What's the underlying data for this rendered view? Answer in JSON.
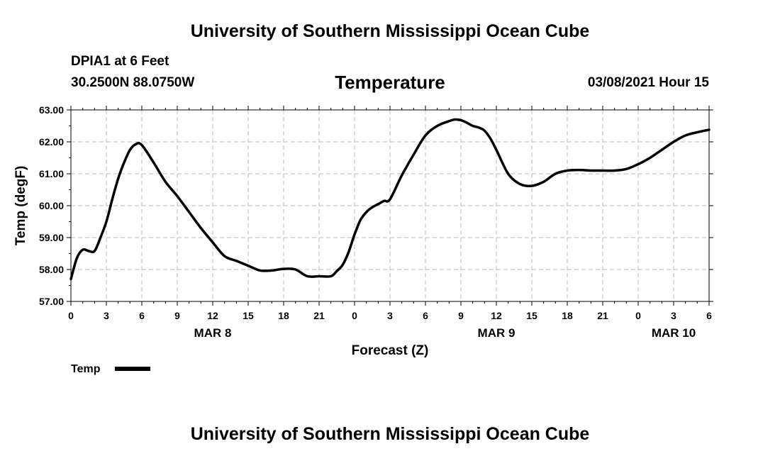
{
  "title_top": "University of Southern Mississippi Ocean Cube",
  "title_bottom": "University of Southern Mississippi Ocean Cube",
  "station": "DPIA1 at 6 Feet",
  "coords": "30.2500N 88.0750W",
  "subtitle": "Temperature",
  "timestamp": "03/08/2021 Hour 15",
  "legend_label": "Temp",
  "colors": {
    "line": "#000000",
    "grid": "#bbbbbb",
    "background": "#ffffff"
  },
  "chart_data": {
    "type": "line",
    "title": "Temperature",
    "xlabel": "Forecast (Z)",
    "ylabel": "Temp (degF)",
    "xlim": [
      0,
      54
    ],
    "ylim": [
      57,
      63
    ],
    "grid": true,
    "legend_position": "bottom-left",
    "x_tick_labels": [
      "0",
      "3",
      "6",
      "9",
      "12",
      "15",
      "18",
      "21",
      "0",
      "3",
      "6",
      "9",
      "12",
      "15",
      "18",
      "21",
      "0",
      "3",
      "6"
    ],
    "y_tick_labels": [
      "57.00",
      "58.00",
      "59.00",
      "60.00",
      "61.00",
      "62.00",
      "63.00"
    ],
    "date_labels": [
      {
        "label": "MAR 8",
        "x": 12
      },
      {
        "label": "MAR 9",
        "x": 36
      },
      {
        "label": "MAR 10",
        "x": 51
      }
    ],
    "series": [
      {
        "name": "Temp",
        "x": [
          0,
          0.5,
          1,
          1.5,
          2,
          2.5,
          3,
          3.5,
          4,
          4.5,
          5,
          5.5,
          6,
          7,
          8,
          9,
          10,
          11,
          12,
          13,
          14,
          15,
          16,
          17,
          18,
          19,
          20,
          21,
          22,
          22.5,
          23,
          23.5,
          24,
          24.5,
          25,
          25.5,
          26,
          26.5,
          27,
          28,
          29,
          30,
          31,
          32,
          32.5,
          33,
          33.5,
          34,
          34.5,
          35,
          35.5,
          36,
          37,
          38,
          39,
          40,
          41,
          42,
          43,
          44,
          45,
          46,
          47,
          48,
          49,
          50,
          51,
          52,
          53,
          54
        ],
        "y": [
          57.7,
          58.35,
          58.62,
          58.58,
          58.58,
          59.0,
          59.5,
          60.2,
          60.85,
          61.35,
          61.75,
          61.93,
          61.9,
          61.35,
          60.75,
          60.3,
          59.8,
          59.3,
          58.85,
          58.42,
          58.27,
          58.12,
          57.97,
          57.97,
          58.02,
          58.0,
          57.79,
          57.79,
          57.79,
          57.95,
          58.15,
          58.55,
          59.1,
          59.55,
          59.8,
          59.95,
          60.05,
          60.15,
          60.2,
          60.95,
          61.6,
          62.2,
          62.5,
          62.65,
          62.7,
          62.68,
          62.6,
          62.5,
          62.45,
          62.35,
          62.1,
          61.75,
          61.0,
          60.68,
          60.62,
          60.75,
          61.0,
          61.1,
          61.12,
          61.1,
          61.1,
          61.1,
          61.15,
          61.3,
          61.5,
          61.75,
          62.0,
          62.2,
          62.3,
          62.38
        ]
      }
    ]
  }
}
